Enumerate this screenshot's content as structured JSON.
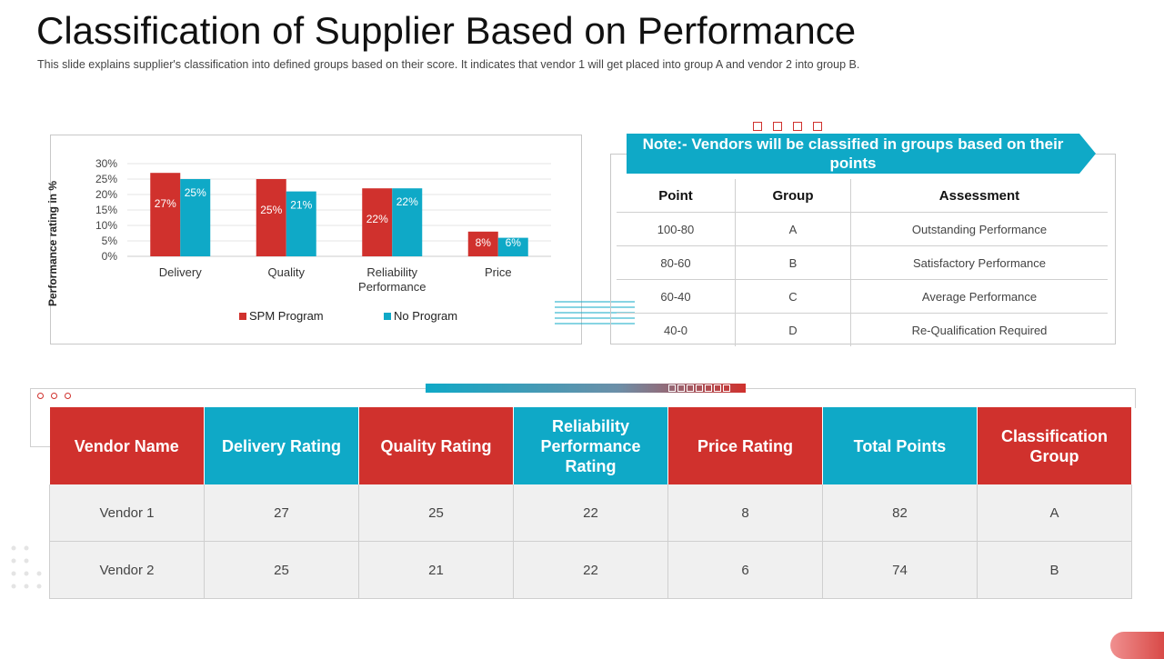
{
  "header": {
    "title": "Classification of Supplier Based on Performance",
    "subtitle": "This slide explains supplier's classification into defined groups based on their score. It indicates that vendor 1 will get placed into group A and vendor 2 into group B."
  },
  "chart_data": {
    "type": "bar",
    "title": "",
    "ylabel": "Performance rating in %",
    "xlabel": "",
    "categories": [
      "Delivery",
      "Quality",
      "Reliability\nPerformance",
      "Price"
    ],
    "series": [
      {
        "name": "SPM Program",
        "values": [
          27,
          25,
          22,
          8
        ],
        "labels": [
          "27%",
          "25%",
          "22%",
          "8%"
        ],
        "color": "#d0312d"
      },
      {
        "name": "No Program",
        "values": [
          25,
          21,
          22,
          6
        ],
        "labels": [
          "25%",
          "21%",
          "22%",
          "6%"
        ],
        "color": "#0fa9c7"
      }
    ],
    "yticks": [
      "0%",
      "5%",
      "10%",
      "15%",
      "20%",
      "25%",
      "30%"
    ],
    "ylim": [
      0,
      30
    ],
    "grid": true,
    "legend": "bottom"
  },
  "note": {
    "banner": "Note:- Vendors will be classified in groups based on their points",
    "columns": [
      "Point",
      "Group",
      "Assessment"
    ],
    "rows": [
      [
        "100-80",
        "A",
        "Outstanding Performance"
      ],
      [
        "80-60",
        "B",
        "Satisfactory Performance"
      ],
      [
        "60-40",
        "C",
        "Average Performance"
      ],
      [
        "40-0",
        "D",
        "Re-Qualification Required"
      ]
    ]
  },
  "vendor_table": {
    "headers": [
      "Vendor Name",
      "Delivery Rating",
      "Quality Rating",
      "Reliability Performance Rating",
      "Price Rating",
      "Total Points",
      "Classification Group"
    ],
    "rows": [
      [
        "Vendor 1",
        "27",
        "25",
        "22",
        "8",
        "82",
        "A"
      ],
      [
        "Vendor 2",
        "25",
        "21",
        "22",
        "6",
        "74",
        "B"
      ]
    ]
  },
  "colors": {
    "accent_red": "#d0312d",
    "accent_cyan": "#0fa9c7"
  }
}
